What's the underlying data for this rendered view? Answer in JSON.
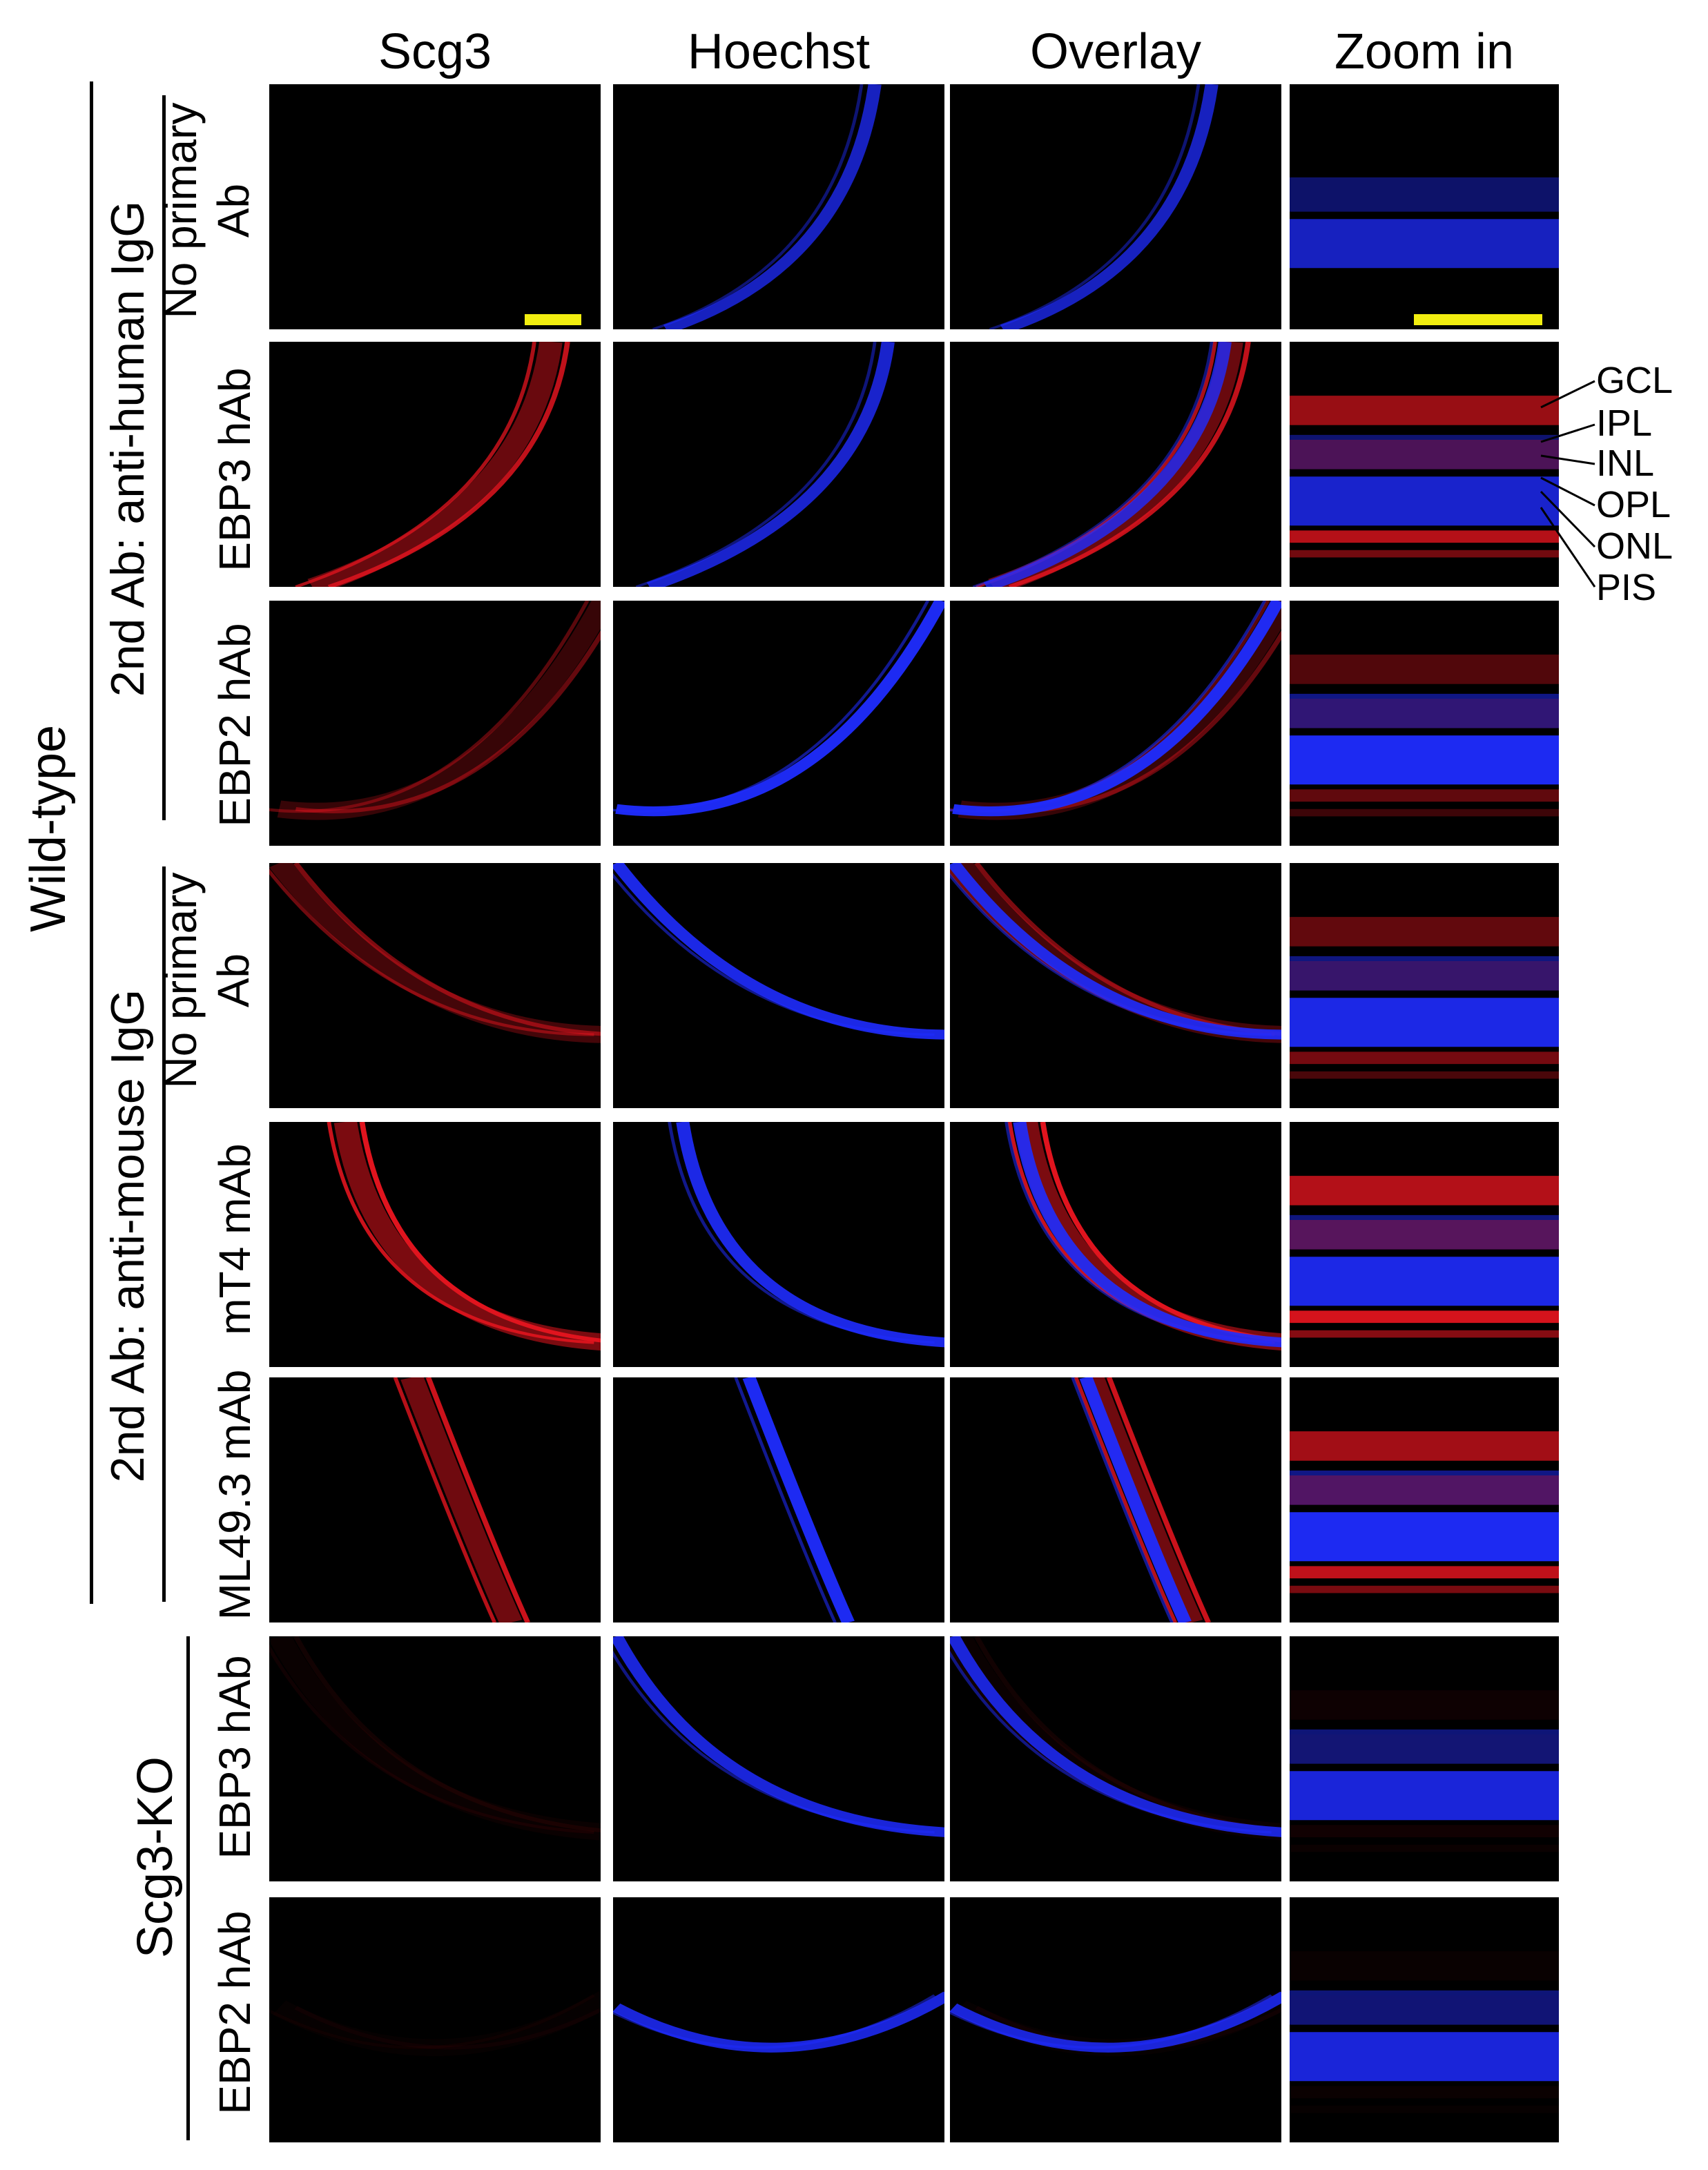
{
  "columns": [
    "Scg3",
    "Hoechst",
    "Overlay",
    "Zoom in"
  ],
  "outer_labels": {
    "wildtype": "Wild-type",
    "knockout": "Scg3-KO"
  },
  "group_labels": {
    "human": "2nd Ab: anti-human IgG",
    "mouse": "2nd Ab: anti-mouse IgG"
  },
  "rows": [
    {
      "label": [
        "No primary",
        "Ab"
      ]
    },
    {
      "label": [
        "EBP3 hAb"
      ]
    },
    {
      "label": [
        "EBP2 hAb"
      ]
    },
    {
      "label": [
        "No primary",
        "Ab"
      ]
    },
    {
      "label": [
        "mT4 mAb"
      ]
    },
    {
      "label": [
        "ML49.3 mAb"
      ]
    },
    {
      "label": [
        "EBP3 hAb"
      ]
    },
    {
      "label": [
        "EBP2 hAb"
      ]
    }
  ],
  "layers": [
    "GCL",
    "IPL",
    "INL",
    "OPL",
    "ONL",
    "PIS"
  ],
  "colors": {
    "scalebar": "#f2ee10",
    "stain_red": "#e0141e",
    "stain_blue": "#1f2cff"
  }
}
